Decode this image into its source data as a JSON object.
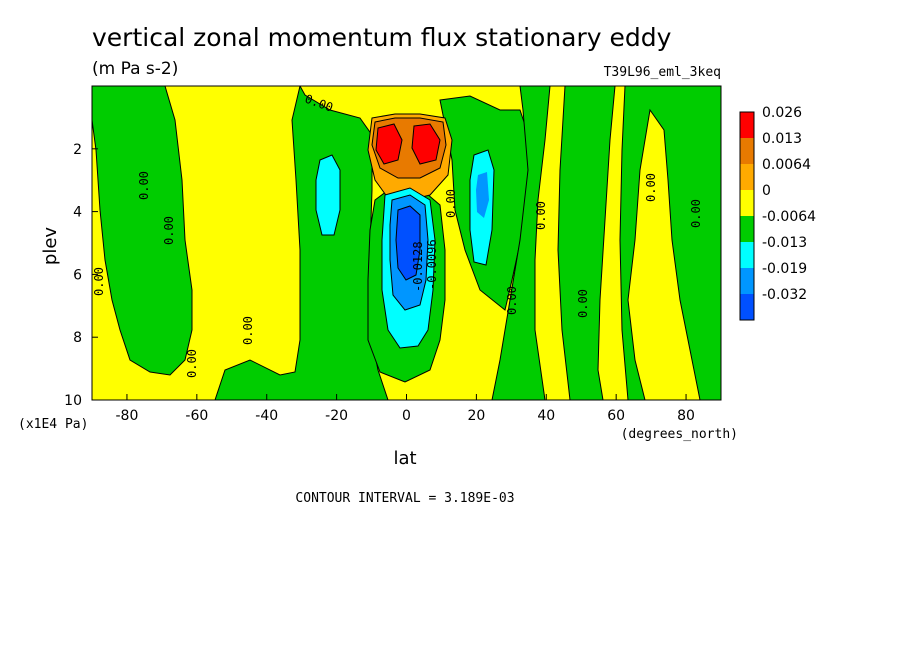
{
  "chart_data": {
    "type": "contour",
    "title": "vertical zonal momentum flux stationary eddy",
    "units": "(m Pa s-2)",
    "experiment": "T39L96_eml_3keq",
    "xlabel": "lat",
    "x_units": "(degrees_north)",
    "ylabel": "plev",
    "y_units": "(x1E4 Pa)",
    "xlim": [
      -90,
      90
    ],
    "ylim": [
      10,
      0
    ],
    "x_ticks": [
      "-80",
      "-60",
      "-40",
      "-20",
      "0",
      "20",
      "40",
      "60",
      "80"
    ],
    "y_ticks": [
      "2",
      "4",
      "6",
      "8",
      "10"
    ],
    "contour_interval": "CONTOUR INTERVAL = 3.189E-03",
    "legend": {
      "labels": [
        "0.026",
        "0.013",
        "0.0064",
        "0",
        "-0.0064",
        "-0.013",
        "-0.019",
        "-0.032"
      ],
      "colors": [
        "#ff0000",
        "#e87a00",
        "#ffaa00",
        "#ffff00",
        "#00cc00",
        "#00ffff",
        "#0096ff",
        "#0050ff"
      ]
    },
    "contour_labels": [
      "0.00",
      "0.00",
      "0.00",
      "0.00",
      "0.00",
      "0.00",
      "0.00",
      "0.00",
      "0.00",
      "0.00",
      "0.00",
      "0.00",
      "-0.0128",
      "-0.0096",
      "0.00",
      "0.00"
    ],
    "features": [
      {
        "kind": "max",
        "lat": -5,
        "plev": 2.0,
        "value": 0.026
      },
      {
        "kind": "max",
        "lat": 6,
        "plev": 2.0,
        "value": 0.026
      },
      {
        "kind": "min",
        "lat": 0,
        "plev": 5.0,
        "value": -0.032
      },
      {
        "kind": "min",
        "lat": -23,
        "plev": 4.3,
        "value": -0.013
      },
      {
        "kind": "min",
        "lat": 22,
        "plev": 3.7,
        "value": -0.013
      }
    ]
  }
}
